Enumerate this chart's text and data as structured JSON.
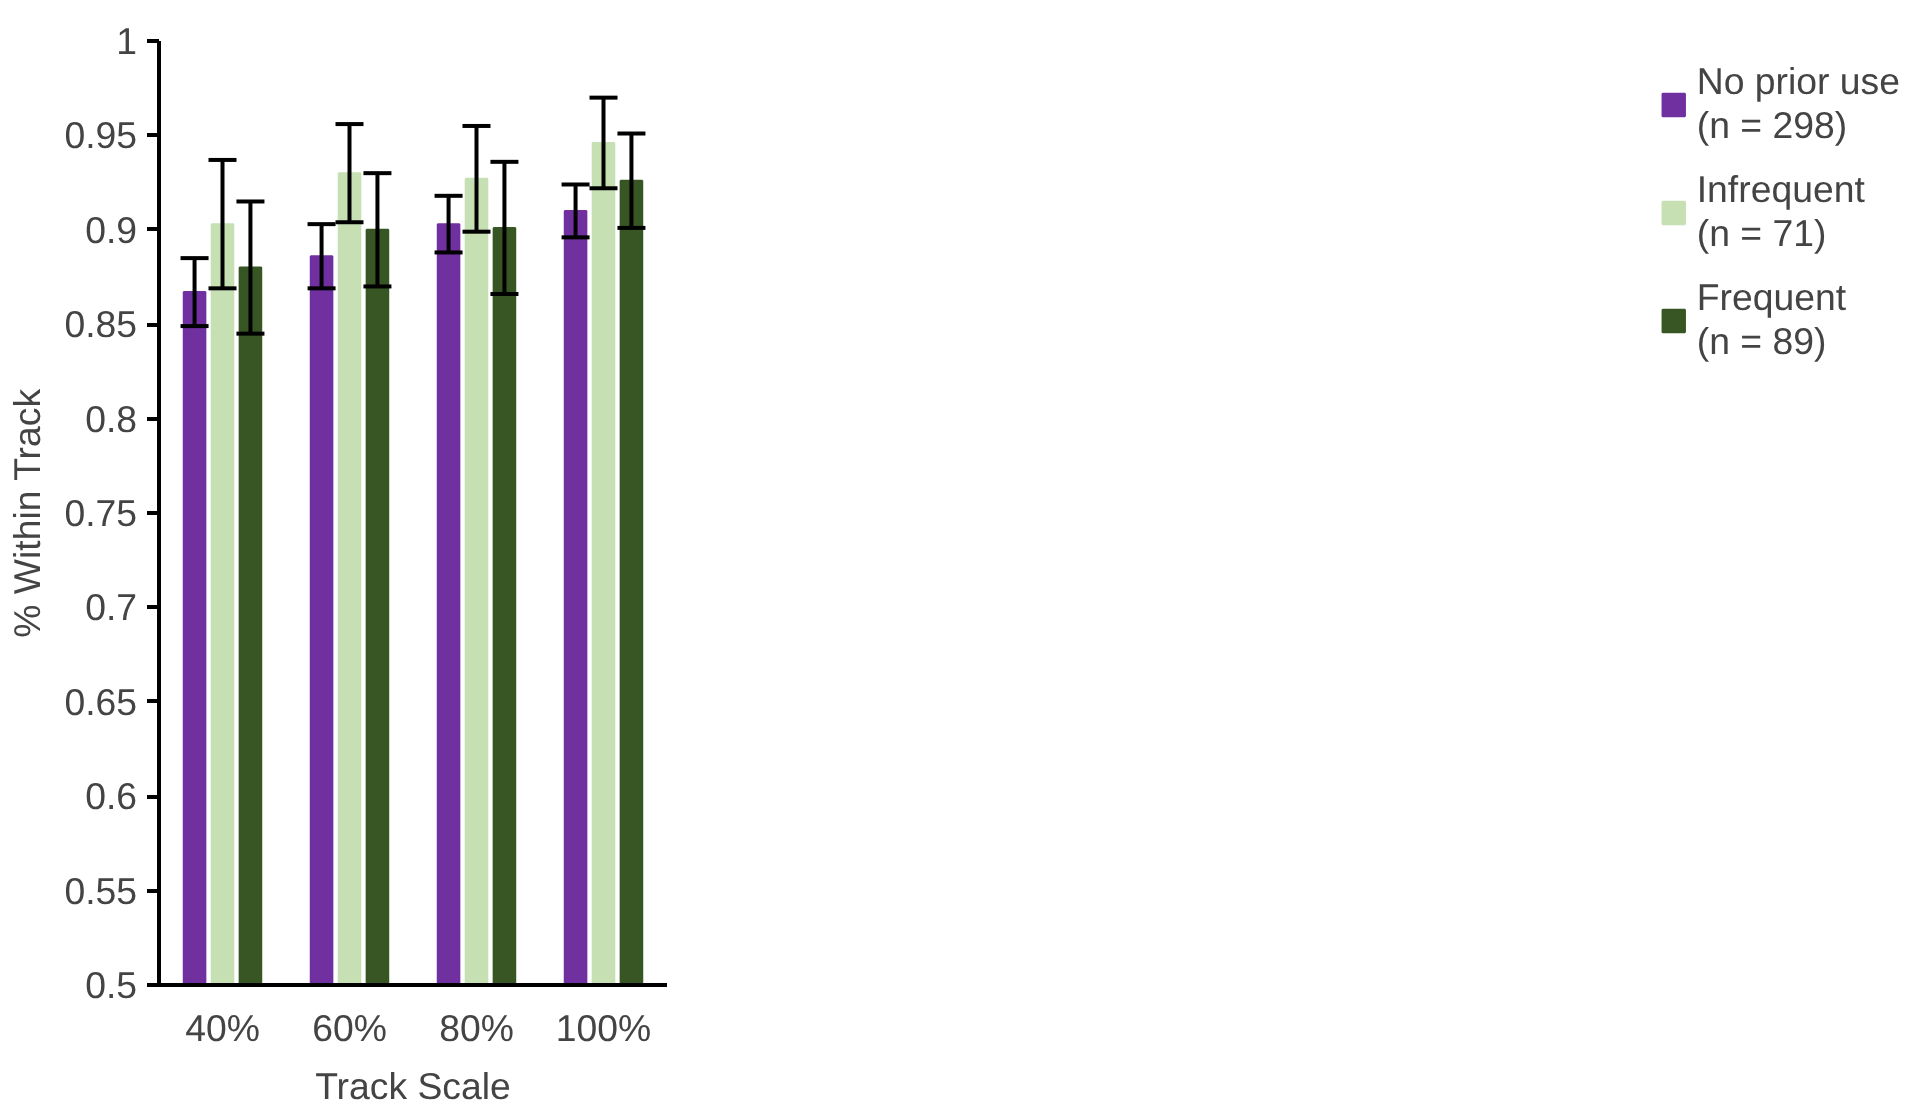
{
  "chart_data": {
    "type": "bar",
    "xlabel": "Track Scale",
    "ylabel": "% Within Track",
    "categories": [
      "40%",
      "60%",
      "80%",
      "100%"
    ],
    "series": [
      {
        "name": "No prior use\n(n = 298)",
        "color": "#7030a0",
        "values": [
          0.867,
          0.886,
          0.903,
          0.91
        ],
        "errors": [
          0.018,
          0.017,
          0.015,
          0.014
        ]
      },
      {
        "name": "Infrequent\n(n = 71)",
        "color": "#c6e0b4",
        "values": [
          0.903,
          0.93,
          0.927,
          0.946
        ],
        "errors": [
          0.034,
          0.026,
          0.028,
          0.024
        ]
      },
      {
        "name": "Frequent\n(n = 89)",
        "color": "#375623",
        "values": [
          0.88,
          0.9,
          0.901,
          0.926
        ],
        "errors": [
          0.035,
          0.03,
          0.035,
          0.025
        ]
      }
    ],
    "ylim": [
      0.5,
      1
    ],
    "yticks": [
      0.5,
      0.55,
      0.6,
      0.65,
      0.7,
      0.75,
      0.8,
      0.85,
      0.9,
      0.95,
      1
    ],
    "grid": false,
    "legend": "right"
  }
}
